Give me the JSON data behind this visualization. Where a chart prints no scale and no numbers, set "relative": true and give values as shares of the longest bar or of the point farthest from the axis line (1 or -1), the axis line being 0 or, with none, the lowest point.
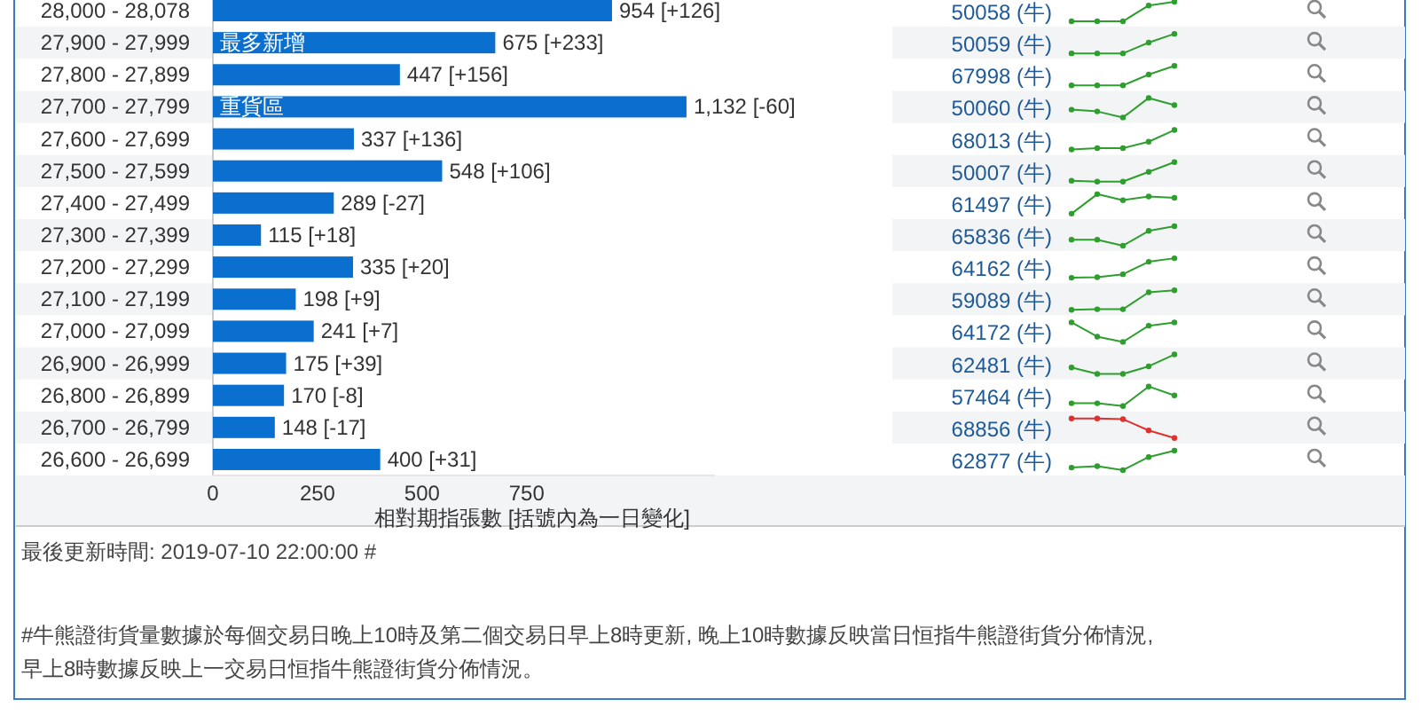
{
  "chart_data": [
    {
      "type": "bar",
      "orientation": "horizontal",
      "xlabel": "相對期指張數 [括號內為一日變化]",
      "categories": [
        "28,000 - 28,078",
        "27,900 - 27,999",
        "27,800 - 27,899",
        "27,700 - 27,799",
        "27,600 - 27,699",
        "27,500 - 27,599",
        "27,400 - 27,499",
        "27,300 - 27,399",
        "27,200 - 27,299",
        "27,100 - 27,199",
        "27,000 - 27,099",
        "26,900 - 26,999",
        "26,800 - 26,899",
        "26,700 - 26,799",
        "26,600 - 26,699"
      ],
      "values": [
        954,
        675,
        447,
        1132,
        337,
        548,
        289,
        115,
        335,
        198,
        241,
        175,
        170,
        148,
        400
      ],
      "value_labels": [
        "954 [+126]",
        "675 [+233]",
        "447 [+156]",
        "1,132 [-60]",
        "337 [+136]",
        "548 [+106]",
        "289 [-27]",
        "115 [+18]",
        "335 [+20]",
        "198 [+9]",
        "241 [+7]",
        "175 [+39]",
        "170 [-8]",
        "148 [-17]",
        "400 [+31]"
      ],
      "color": "#0a6fcf",
      "xlim": [
        0,
        1200
      ],
      "xticks": [
        0,
        250,
        500,
        750
      ],
      "annotations": [
        {
          "text": "最多新增",
          "y": "27,900 - 27,999"
        },
        {
          "text": "重貨區",
          "y": "27,700 - 27,799"
        },
        "50058 (牛)",
        "50059 (牛)",
        "67998 (牛)",
        "50060 (牛)",
        "68013 (牛)",
        "50007 (牛)",
        "61497 (牛)",
        "65836 (牛)",
        "64162 (牛)",
        "59089 (牛)",
        "64172 (牛)",
        "62481 (牛)",
        "57464 (牛)",
        "68856 (牛)",
        "62877 (牛)",
        "最後更新時間: 2019-07-10 22:00:00 #",
        "#牛熊證街貨量數據於每個交易日晚上10時及第二個交易日早上8時更新, 晚上10時數據反映當日恒指牛熊證街貨分佈情況,",
        "早上8時數據反映上一交易日恒指牛熊證街貨分佈情況。"
      ]
    },
    {
      "type": "line",
      "relative": true,
      "marker": "circle",
      "categories": [
        null,
        null,
        null,
        null,
        null
      ],
      "series": [
        {
          "color": "#2e9e2e",
          "values": [
            0,
            0,
            0,
            0.81,
            1
          ]
        }
      ]
    },
    {
      "type": "line",
      "relative": true,
      "marker": "circle",
      "categories": [
        null,
        null,
        null,
        null,
        null
      ],
      "series": [
        {
          "color": "#2e9e2e",
          "values": [
            0,
            0,
            0,
            0.55,
            1
          ]
        }
      ]
    },
    {
      "type": "line",
      "relative": true,
      "marker": "circle",
      "categories": [
        null,
        null,
        null,
        null,
        null
      ],
      "series": [
        {
          "color": "#2e9e2e",
          "values": [
            0,
            0,
            0,
            0.56,
            1
          ]
        }
      ]
    },
    {
      "type": "line",
      "relative": true,
      "marker": "circle",
      "categories": [
        null,
        null,
        null,
        null,
        null
      ],
      "series": [
        {
          "color": "#2e9e2e",
          "values": [
            0.4,
            0.31,
            0,
            1,
            0.63
          ]
        }
      ]
    },
    {
      "type": "line",
      "relative": true,
      "marker": "circle",
      "categories": [
        null,
        null,
        null,
        null,
        null
      ],
      "series": [
        {
          "color": "#2e9e2e",
          "values": [
            0,
            0.07,
            0.07,
            0.4,
            1
          ]
        }
      ]
    },
    {
      "type": "line",
      "relative": true,
      "marker": "circle",
      "categories": [
        null,
        null,
        null,
        null,
        null
      ],
      "series": [
        {
          "color": "#2e9e2e",
          "values": [
            0.04,
            0,
            0,
            0.5,
            1
          ]
        }
      ]
    },
    {
      "type": "line",
      "relative": true,
      "marker": "circle",
      "categories": [
        null,
        null,
        null,
        null,
        null
      ],
      "series": [
        {
          "color": "#2e9e2e",
          "values": [
            0,
            1,
            0.69,
            0.88,
            0.81
          ]
        }
      ]
    },
    {
      "type": "line",
      "relative": true,
      "marker": "circle",
      "categories": [
        null,
        null,
        null,
        null,
        null
      ],
      "series": [
        {
          "color": "#2e9e2e",
          "values": [
            0.31,
            0.31,
            0,
            0.76,
            1
          ]
        }
      ]
    },
    {
      "type": "line",
      "relative": true,
      "marker": "circle",
      "categories": [
        null,
        null,
        null,
        null,
        null
      ],
      "series": [
        {
          "color": "#2e9e2e",
          "values": [
            0,
            0.03,
            0.18,
            0.82,
            1
          ]
        }
      ]
    },
    {
      "type": "line",
      "relative": true,
      "marker": "circle",
      "categories": [
        null,
        null,
        null,
        null,
        null
      ],
      "series": [
        {
          "color": "#2e9e2e",
          "values": [
            0,
            0.03,
            0.03,
            0.9,
            1
          ]
        }
      ]
    },
    {
      "type": "line",
      "relative": true,
      "marker": "circle",
      "categories": [
        null,
        null,
        null,
        null,
        null
      ],
      "series": [
        {
          "color": "#2e9e2e",
          "values": [
            1,
            0.27,
            0,
            0.83,
            1
          ]
        }
      ]
    },
    {
      "type": "line",
      "relative": true,
      "marker": "circle",
      "categories": [
        null,
        null,
        null,
        null,
        null
      ],
      "series": [
        {
          "color": "#2e9e2e",
          "values": [
            0.33,
            0,
            0,
            0.39,
            1
          ]
        }
      ]
    },
    {
      "type": "line",
      "relative": true,
      "marker": "circle",
      "categories": [
        null,
        null,
        null,
        null,
        null
      ],
      "series": [
        {
          "color": "#2e9e2e",
          "values": [
            0.14,
            0.14,
            0,
            1,
            0.54
          ]
        }
      ]
    },
    {
      "type": "line",
      "relative": true,
      "marker": "circle",
      "categories": [
        null,
        null,
        null,
        null,
        null
      ],
      "series": [
        {
          "color": "#e03030",
          "values": [
            1,
            1,
            0.97,
            0.39,
            0
          ]
        }
      ]
    },
    {
      "type": "line",
      "relative": true,
      "marker": "circle",
      "categories": [
        null,
        null,
        null,
        null,
        null
      ],
      "series": [
        {
          "color": "#2e9e2e",
          "values": [
            0.13,
            0.2,
            0,
            0.67,
            1
          ]
        }
      ]
    }
  ]
}
